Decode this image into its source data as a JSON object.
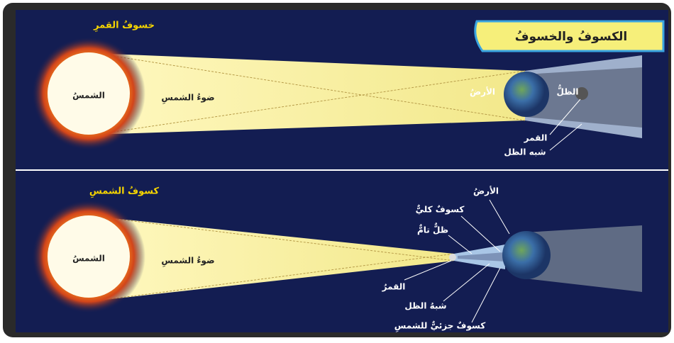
{
  "title": "الكسوفُ والخسوفُ",
  "lunar_eclipse": {
    "heading": "خسوفُ القمرِ",
    "sun": "الشمسُ",
    "sunlight": "ضوءُ الشمسِ",
    "earth": "الأرضُ",
    "umbra": "الظلُّ",
    "moon": "القمر",
    "penumbra": "شبه الظل"
  },
  "solar_eclipse": {
    "heading": "كسوفُ الشمسِ",
    "sun": "الشمسُ",
    "sunlight": "ضوءُ الشمسِ",
    "earth": "الأرضُ",
    "total_eclipse": "كسوفٌ كليٌّ",
    "umbra": "ظلٌّ تامٌّ",
    "moon": "القمرُ",
    "penumbra": "شبهُ الظل",
    "partial_eclipse": "كسوفٌ جزئيٌّ للشمسِ"
  }
}
